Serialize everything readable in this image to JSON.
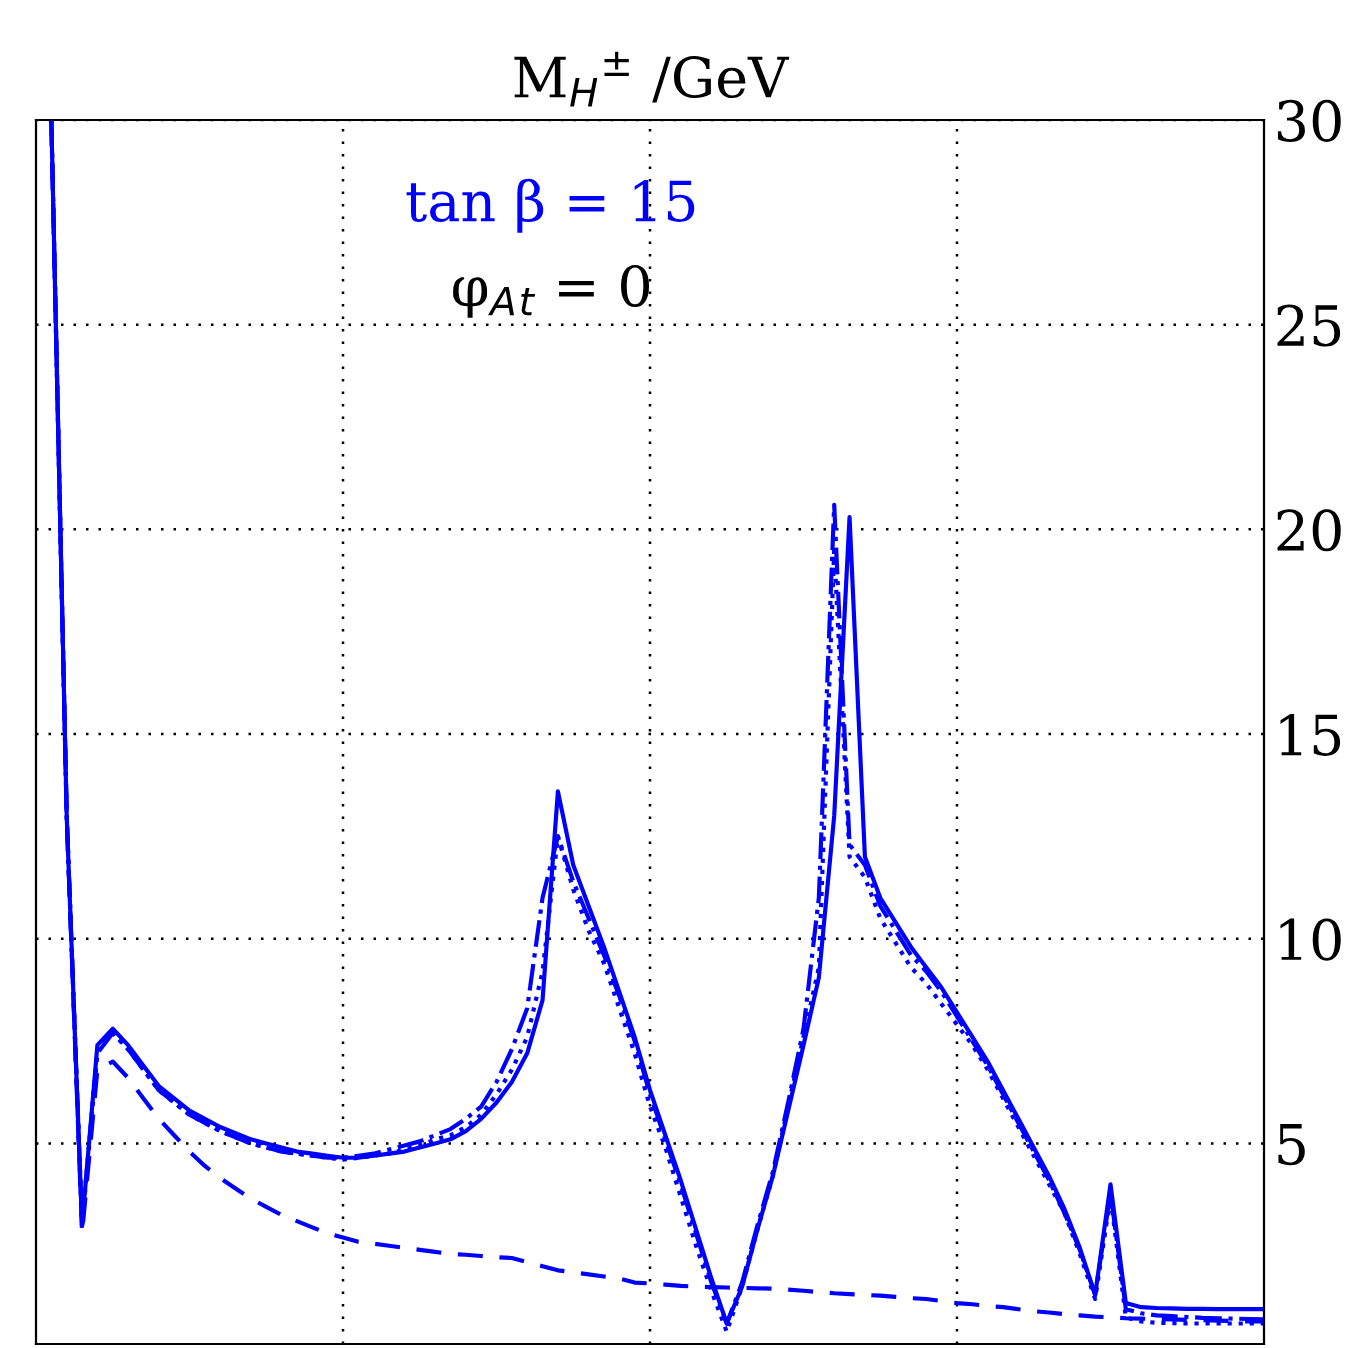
{
  "chart_data": {
    "type": "line",
    "title": "M$_{H}$$^{±}$ /GeV",
    "annotations": [
      "tan β = 15",
      "φ$_{A}$$_{t}$ = 0"
    ],
    "categories": [
      null,
      null,
      null,
      null,
      null,
      null,
      null,
      null,
      null,
      null,
      null,
      null,
      null,
      null,
      null,
      null,
      null,
      null,
      null,
      null,
      null,
      null,
      null,
      null,
      null,
      null,
      null,
      null,
      null,
      null,
      null,
      null,
      null,
      null,
      null,
      null,
      null,
      null,
      null,
      null,
      null,
      null,
      null,
      null,
      null,
      null,
      null,
      null,
      null,
      null,
      null,
      null,
      null,
      null,
      null,
      null,
      null,
      null,
      null,
      null,
      null,
      null,
      null,
      null,
      null,
      null,
      null,
      null,
      null,
      null,
      null,
      null,
      null,
      null,
      null,
      null,
      null,
      null,
      null,
      null
    ],
    "ylim": [
      0.1,
      30
    ],
    "yticks": [
      5,
      10,
      15,
      20,
      25,
      30
    ],
    "grid": true,
    "legend": false,
    "tick_labels": "y",
    "series": [
      {
        "color": "#0000ff",
        "line_style": "solid",
        "values": [
          30,
          13,
          3.0,
          7.4,
          7.8,
          7.4,
          6.9,
          6.4,
          6.1,
          5.8,
          5.6,
          5.4,
          5.25,
          5.1,
          5.0,
          4.9,
          4.8,
          4.75,
          4.7,
          4.65,
          4.65,
          4.7,
          4.75,
          4.8,
          4.9,
          5.0,
          5.1,
          5.3,
          5.6,
          6.0,
          6.5,
          7.2,
          8.5,
          13.6,
          11.8,
          10.8,
          9.8,
          8.7,
          7.6,
          6.3,
          5.2,
          4.1,
          2.9,
          1.7,
          0.6,
          1.5,
          2.9,
          4.2,
          5.8,
          7.4,
          9.05,
          13.0,
          20.3,
          12.0,
          11.0,
          10.4,
          9.8,
          9.3,
          8.8,
          8.2,
          7.6,
          7.0,
          6.3,
          5.6,
          4.9,
          4.2,
          3.4,
          2.45,
          1.3,
          4.0,
          1.1,
          1.0,
          0.98,
          0.97,
          0.96,
          0.96,
          0.95,
          0.95,
          0.95,
          0.95
        ]
      },
      {
        "color": "#0000ff",
        "line_style": "dashdot",
        "values": [
          30,
          13,
          3.0,
          7.2,
          7.7,
          7.3,
          6.8,
          6.3,
          6.0,
          5.7,
          5.5,
          5.3,
          5.15,
          5.0,
          4.9,
          4.8,
          4.75,
          4.7,
          4.65,
          4.65,
          4.7,
          4.75,
          4.85,
          4.95,
          5.05,
          5.2,
          5.35,
          5.6,
          5.9,
          6.5,
          7.3,
          8.3,
          11.0,
          12.5,
          11.4,
          10.5,
          9.6,
          8.6,
          7.5,
          6.2,
          5.1,
          4.0,
          2.8,
          1.6,
          0.6,
          1.6,
          3.0,
          4.3,
          6.0,
          7.8,
          11.0,
          20.6,
          12.3,
          11.8,
          10.8,
          10.2,
          9.6,
          9.2,
          8.7,
          8.1,
          7.5,
          6.9,
          6.2,
          5.5,
          4.8,
          4.1,
          3.3,
          2.4,
          1.3,
          3.8,
          0.95,
          0.85,
          0.8,
          0.78,
          0.76,
          0.74,
          0.73,
          0.72,
          0.71,
          0.7
        ]
      },
      {
        "color": "#0000ff",
        "line_style": "dotted",
        "values": [
          30,
          13,
          3.0,
          7.3,
          7.7,
          7.3,
          6.8,
          6.3,
          6.0,
          5.7,
          5.5,
          5.3,
          5.15,
          5.0,
          4.9,
          4.8,
          4.75,
          4.7,
          4.65,
          4.6,
          4.65,
          4.7,
          4.75,
          4.85,
          4.95,
          5.1,
          5.2,
          5.4,
          5.7,
          6.2,
          6.8,
          7.6,
          9.2,
          12.5,
          11.2,
          10.2,
          9.4,
          8.3,
          7.2,
          5.9,
          4.9,
          3.7,
          2.5,
          1.4,
          0.4,
          1.5,
          2.9,
          4.2,
          5.9,
          7.6,
          9.3,
          19.5,
          12.0,
          11.5,
          10.5,
          9.9,
          9.3,
          8.9,
          8.4,
          7.9,
          7.4,
          6.8,
          6.1,
          5.4,
          4.7,
          4.0,
          3.3,
          2.3,
          1.2,
          3.7,
          0.75,
          0.65,
          0.62,
          0.61,
          0.6,
          0.6,
          0.6,
          0.6,
          0.6,
          0.6
        ]
      },
      {
        "color": "#0000ff",
        "line_style": "dashed",
        "values": [
          30,
          13,
          2.8,
          6.8,
          7.0,
          6.6,
          6.1,
          5.6,
          5.2,
          4.8,
          4.45,
          4.15,
          3.9,
          3.65,
          3.45,
          3.25,
          3.1,
          2.95,
          2.8,
          2.7,
          2.6,
          2.55,
          2.5,
          2.45,
          2.4,
          2.35,
          2.3,
          2.28,
          2.25,
          2.22,
          2.2,
          2.1,
          2.0,
          1.9,
          1.85,
          1.8,
          1.75,
          1.7,
          1.6,
          1.58,
          1.55,
          1.52,
          1.5,
          1.49,
          1.48,
          1.47,
          1.46,
          1.45,
          1.43,
          1.4,
          1.37,
          1.34,
          1.32,
          1.3,
          1.28,
          1.25,
          1.22,
          1.2,
          1.15,
          1.1,
          1.07,
          1.03,
          1.0,
          0.95,
          0.9,
          0.87,
          0.83,
          0.8,
          0.77,
          0.75,
          0.73,
          0.72,
          0.71,
          0.7,
          0.69,
          0.68,
          0.67,
          0.66,
          0.65,
          0.65
        ]
      }
    ]
  }
}
